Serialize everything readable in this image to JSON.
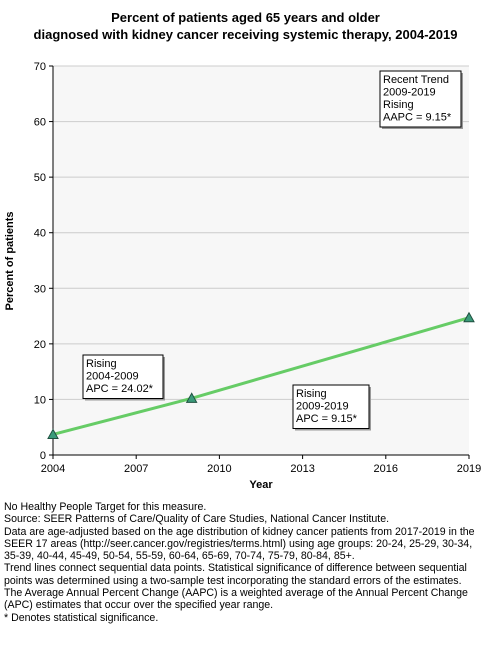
{
  "chart_data": {
    "type": "line",
    "title": [
      "Percent of patients aged 65 years and older",
      "diagnosed with kidney cancer receiving systemic therapy, 2004-2019"
    ],
    "xlabel": "Year",
    "ylabel": "Percent of patients",
    "xlim": [
      2004,
      2019
    ],
    "ylim": [
      0,
      70
    ],
    "x_ticks": [
      2004,
      2007,
      2010,
      2013,
      2016,
      2019
    ],
    "y_ticks": [
      0,
      10,
      20,
      30,
      40,
      50,
      60,
      70
    ],
    "grid": "horizontal",
    "points": [
      {
        "x": 2004,
        "y": 3.7
      },
      {
        "x": 2009,
        "y": 10.2
      },
      {
        "x": 2019,
        "y": 24.7
      }
    ],
    "colors": {
      "line": "#66cc66",
      "marker_fill": "#3a9a7a",
      "marker_stroke": "#1f4f3f",
      "plot_bg": "#f7f7f7",
      "grid": "#cccccc"
    },
    "annotations": [
      {
        "lines": [
          "Recent Trend",
          "2009-2019",
          "Rising",
          "AAPC =  9.15*"
        ],
        "anchor": [
          2019,
          70
        ]
      },
      {
        "lines": [
          "Rising",
          "2004-2009",
          "APC = 24.02*"
        ],
        "anchor": [
          2005.6,
          18
        ]
      },
      {
        "lines": [
          "Rising",
          "2009-2019",
          "APC =  9.15*"
        ],
        "anchor": [
          2013.6,
          12
        ]
      }
    ]
  },
  "footer": [
    "No Healthy People Target for this measure.",
    "Source: SEER Patterns of Care/Quality of Care Studies, National Cancer Institute.",
    "Data are age-adjusted based on the age distribution of kidney cancer patients from 2017-2019 in the SEER 17 areas (http://seer.cancer.gov/registries/terms.html) using age groups: 20-24, 25-29, 30-34, 35-39, 40-44, 45-49, 50-54, 55-59, 60-64, 65-69, 70-74, 75-79, 80-84, 85+.",
    "Trend lines connect sequential data points. Statistical significance of difference between sequential points was determined using a two-sample test incorporating the standard errors of the estimates.",
    "The Average Annual Percent Change (AAPC) is a weighted average of the Annual Percent Change (APC) estimates that occur over the specified year range.",
    "* Denotes statistical significance."
  ]
}
